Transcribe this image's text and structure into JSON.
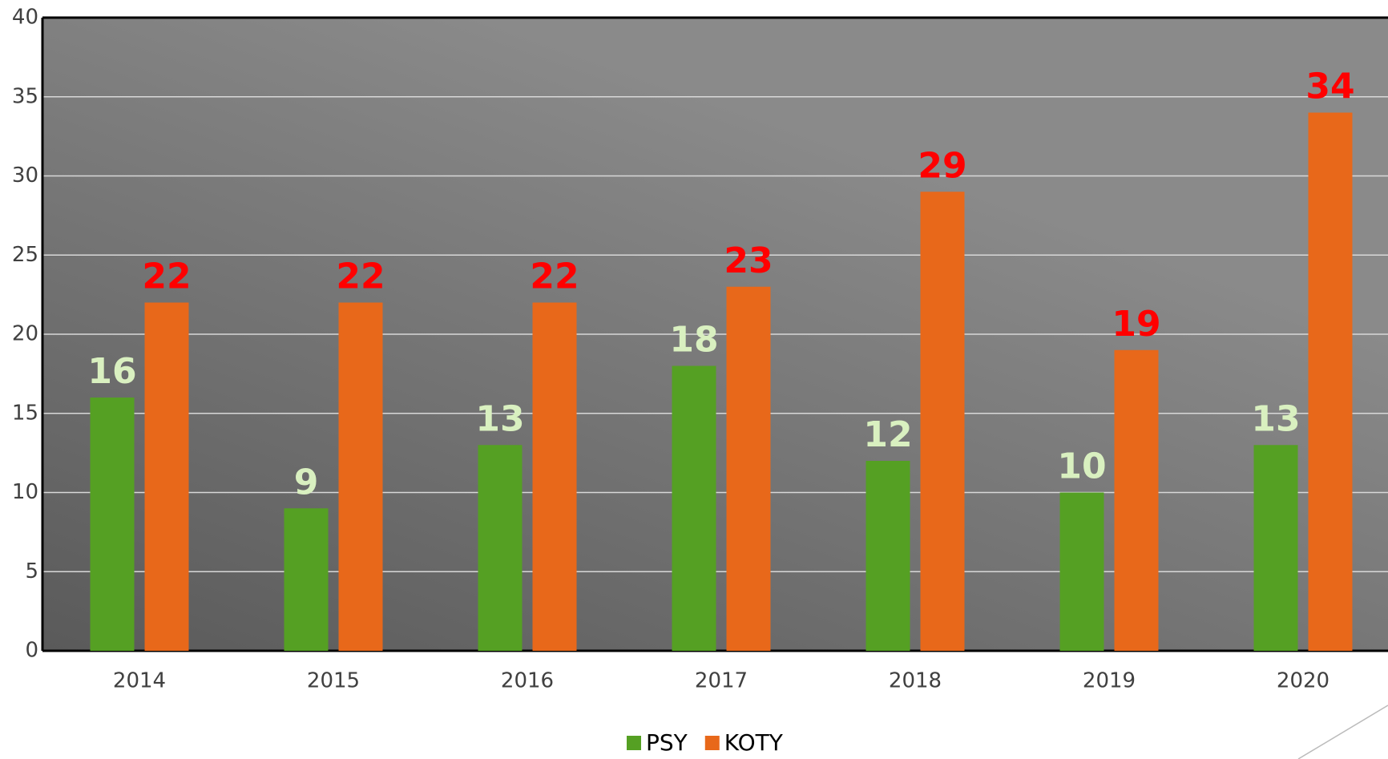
{
  "chart_data": {
    "type": "bar",
    "categories": [
      "2014",
      "2015",
      "2016",
      "2017",
      "2018",
      "2019",
      "2020"
    ],
    "series": [
      {
        "name": "PSY",
        "color": "#55a023",
        "label_color": "#d9f0c0",
        "values": [
          16,
          9,
          13,
          18,
          12,
          10,
          13
        ]
      },
      {
        "name": "KOTY",
        "color": "#e8681a",
        "label_color": "#ff0000",
        "values": [
          22,
          22,
          22,
          23,
          29,
          19,
          34
        ]
      }
    ],
    "ylim": [
      0,
      40
    ],
    "yticks": [
      0,
      5,
      10,
      15,
      20,
      25,
      30,
      35,
      40
    ],
    "grid": true,
    "legend": "bottom"
  }
}
